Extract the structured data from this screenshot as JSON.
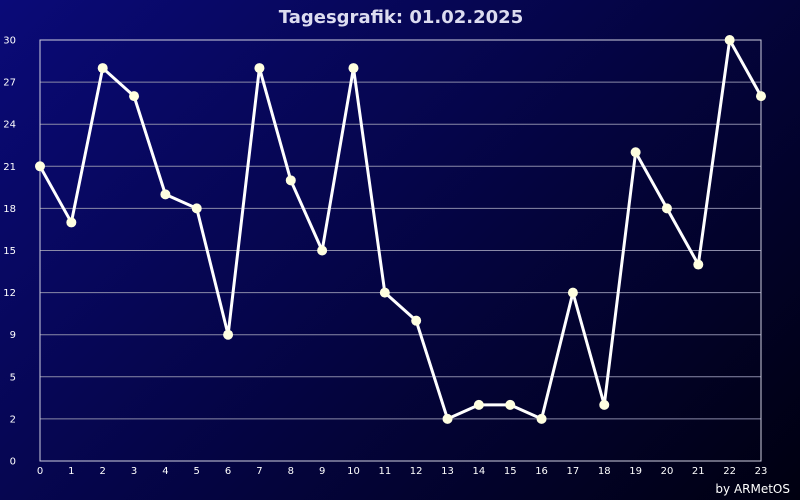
{
  "chart_data": {
    "type": "line",
    "title": "Tagesgrafik: 01.02.2025",
    "xlabel": "",
    "ylabel": "",
    "x": [
      0,
      1,
      2,
      3,
      4,
      5,
      6,
      7,
      8,
      9,
      10,
      11,
      12,
      13,
      14,
      15,
      16,
      17,
      18,
      19,
      20,
      21,
      22,
      23
    ],
    "y": [
      21,
      17,
      28,
      26,
      19,
      18,
      9,
      28,
      20,
      15,
      28,
      12,
      10,
      3,
      4,
      4,
      3,
      12,
      4,
      22,
      18,
      14,
      30,
      26
    ],
    "x_tick_labels": [
      "0",
      "1",
      "2",
      "3",
      "4",
      "5",
      "6",
      "7",
      "8",
      "9",
      "10",
      "11",
      "12",
      "13",
      "14",
      "15",
      "16",
      "17",
      "18",
      "19",
      "20",
      "21",
      "22",
      "23"
    ],
    "y_tick_labels": [
      "0",
      "2",
      "5",
      "9",
      "12",
      "15",
      "18",
      "21",
      "24",
      "27",
      "30"
    ],
    "xlim": [
      0,
      23
    ],
    "ylim": [
      0,
      30
    ],
    "grid": "horizontal",
    "legend": "none",
    "line_color": "#ffffff",
    "marker_color": "#ffffe0",
    "grid_color": "#8a8aa8",
    "background_start": "#0a0a78",
    "background_end": "#000010"
  },
  "credit": "by ARMetOS"
}
